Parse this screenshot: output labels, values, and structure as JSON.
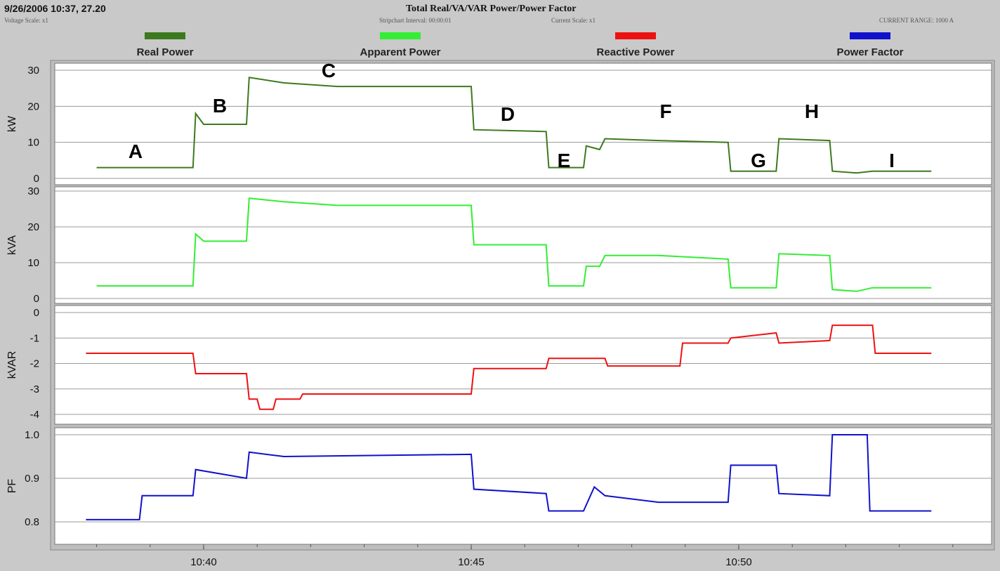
{
  "header": {
    "timestamp": "9/26/2006 10:37, 27.20",
    "title": "Total Real/VA/VAR Power/Power Factor",
    "voltage_scale": "Voltage Scale: x1",
    "stripchart_interval": "Stripchart Interval: 00:00:01",
    "current_scale": "Current Scale: x1",
    "current_range": "CURRENT RANGE: 1000 A"
  },
  "legend": [
    {
      "label": "Real Power",
      "color": "#3d7a1e"
    },
    {
      "label": "Apparent Power",
      "color": "#33ee33"
    },
    {
      "label": "Reactive Power",
      "color": "#ee1111"
    },
    {
      "label": "Power Factor",
      "color": "#1111cc"
    }
  ],
  "chart_data": {
    "type": "line",
    "x_axis": {
      "ticks": [
        "10:40",
        "10:45",
        "10:50"
      ],
      "range": [
        "10:38",
        "10:54"
      ]
    },
    "annotations": [
      "A",
      "B",
      "C",
      "D",
      "E",
      "F",
      "G",
      "H",
      "I"
    ],
    "panels": [
      {
        "ylabel": "kW",
        "ylim": [
          0,
          30
        ],
        "yticks": [
          0,
          10,
          20,
          30
        ],
        "series": "Real Power",
        "color": "#3d7a1e",
        "points": [
          [
            "10:38.0",
            3
          ],
          [
            "10:39.8",
            3
          ],
          [
            "10:39.85",
            18
          ],
          [
            "10:40",
            15
          ],
          [
            "10:40.8",
            15
          ],
          [
            "10:40.85",
            28
          ],
          [
            "10:41.5",
            26.5
          ],
          [
            "10:42.5",
            25.5
          ],
          [
            "10:45",
            25.5
          ],
          [
            "10:45.05",
            13.5
          ],
          [
            "10:46.4",
            13
          ],
          [
            "10:46.45",
            3
          ],
          [
            "10:47.1",
            3
          ],
          [
            "10:47.15",
            9
          ],
          [
            "10:47.4",
            8
          ],
          [
            "10:47.5",
            11
          ],
          [
            "10:48.5",
            10.5
          ],
          [
            "10:49.8",
            10
          ],
          [
            "10:49.85",
            2
          ],
          [
            "10:50.7",
            2
          ],
          [
            "10:50.75",
            11
          ],
          [
            "10:51.7",
            10.5
          ],
          [
            "10:51.75",
            2
          ],
          [
            "10:52.2",
            1.5
          ],
          [
            "10:52.5",
            2
          ],
          [
            "10:53.6",
            2
          ]
        ]
      },
      {
        "ylabel": "kVA",
        "ylim": [
          0,
          30
        ],
        "yticks": [
          0,
          10,
          20,
          30
        ],
        "series": "Apparent Power",
        "color": "#33ee33",
        "points": [
          [
            "10:38.0",
            3.5
          ],
          [
            "10:39.8",
            3.5
          ],
          [
            "10:39.85",
            18
          ],
          [
            "10:40",
            16
          ],
          [
            "10:40.8",
            16
          ],
          [
            "10:40.85",
            28
          ],
          [
            "10:41.5",
            27
          ],
          [
            "10:42.5",
            26
          ],
          [
            "10:45",
            26
          ],
          [
            "10:45.05",
            15
          ],
          [
            "10:46.4",
            15
          ],
          [
            "10:46.45",
            3.5
          ],
          [
            "10:47.1",
            3.5
          ],
          [
            "10:47.15",
            9
          ],
          [
            "10:47.4",
            9
          ],
          [
            "10:47.5",
            12
          ],
          [
            "10:48.5",
            12
          ],
          [
            "10:49.8",
            11
          ],
          [
            "10:49.85",
            3
          ],
          [
            "10:50.7",
            3
          ],
          [
            "10:50.75",
            12.5
          ],
          [
            "10:51.7",
            12
          ],
          [
            "10:51.75",
            2.5
          ],
          [
            "10:52.2",
            2
          ],
          [
            "10:52.5",
            3
          ],
          [
            "10:53.6",
            3
          ]
        ]
      },
      {
        "ylabel": "kVAR",
        "ylim": [
          -4.2,
          0.3
        ],
        "yticks": [
          0,
          -1,
          -2,
          -3,
          -4
        ],
        "series": "Reactive Power",
        "color": "#ee1111",
        "points": [
          [
            "10:37.8",
            -1.6
          ],
          [
            "10:39.8",
            -1.6
          ],
          [
            "10:39.85",
            -2.4
          ],
          [
            "10:40.8",
            -2.4
          ],
          [
            "10:40.85",
            -3.4
          ],
          [
            "10:41.0",
            -3.4
          ],
          [
            "10:41.05",
            -3.8
          ],
          [
            "10:41.3",
            -3.8
          ],
          [
            "10:41.35",
            -3.4
          ],
          [
            "10:41.8",
            -3.4
          ],
          [
            "10:41.85",
            -3.2
          ],
          [
            "10:45",
            -3.2
          ],
          [
            "10:45.05",
            -2.2
          ],
          [
            "10:46.4",
            -2.2
          ],
          [
            "10:46.45",
            -1.8
          ],
          [
            "10:47.5",
            -1.8
          ],
          [
            "10:47.55",
            -2.1
          ],
          [
            "10:48.9",
            -2.1
          ],
          [
            "10:48.95",
            -1.2
          ],
          [
            "10:49.8",
            -1.2
          ],
          [
            "10:49.85",
            -1.0
          ],
          [
            "10:50.7",
            -0.8
          ],
          [
            "10:50.75",
            -1.2
          ],
          [
            "10:51.7",
            -1.1
          ],
          [
            "10:51.75",
            -0.5
          ],
          [
            "10:52.5",
            -0.5
          ],
          [
            "10:52.55",
            -1.6
          ],
          [
            "10:53.6",
            -1.6
          ]
        ]
      },
      {
        "ylabel": "PF",
        "ylim": [
          0.77,
          1.0
        ],
        "yticks": [
          0.8,
          0.9,
          1.0
        ],
        "series": "Power Factor",
        "color": "#1111cc",
        "points": [
          [
            "10:37.8",
            0.805
          ],
          [
            "10:38.8",
            0.805
          ],
          [
            "10:38.85",
            0.86
          ],
          [
            "10:39.8",
            0.86
          ],
          [
            "10:39.85",
            0.92
          ],
          [
            "10:40.8",
            0.9
          ],
          [
            "10:40.85",
            0.96
          ],
          [
            "10:41.5",
            0.95
          ],
          [
            "10:45",
            0.955
          ],
          [
            "10:45.05",
            0.875
          ],
          [
            "10:46.4",
            0.865
          ],
          [
            "10:46.45",
            0.825
          ],
          [
            "10:47.1",
            0.825
          ],
          [
            "10:47.3",
            0.88
          ],
          [
            "10:47.5",
            0.86
          ],
          [
            "10:48.5",
            0.845
          ],
          [
            "10:49.8",
            0.845
          ],
          [
            "10:49.85",
            0.93
          ],
          [
            "10:50.7",
            0.93
          ],
          [
            "10:50.75",
            0.865
          ],
          [
            "10:51.7",
            0.86
          ],
          [
            "10:51.75",
            1.0
          ],
          [
            "10:52.4",
            1.0
          ],
          [
            "10:52.45",
            0.825
          ],
          [
            "10:53.6",
            0.825
          ]
        ]
      }
    ]
  }
}
